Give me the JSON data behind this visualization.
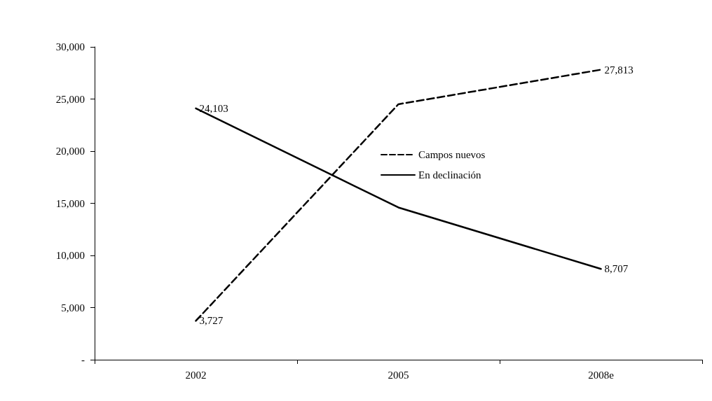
{
  "chart_data": {
    "type": "line",
    "categories": [
      "2002",
      "2005",
      "2008e"
    ],
    "series": [
      {
        "name": "Campos nuevos",
        "color": "#000000",
        "line_style": "dashed",
        "values": [
          3727,
          24500,
          27813
        ],
        "value_labels": [
          "3,727",
          null,
          "27,813"
        ]
      },
      {
        "name": "En declinación",
        "color": "#000000",
        "line_style": "solid",
        "values": [
          24103,
          14600,
          8707
        ],
        "value_labels": [
          "24,103",
          null,
          "8,707"
        ]
      }
    ],
    "ylim": [
      0,
      30000
    ],
    "yticks": [
      {
        "value": 0,
        "label": "-"
      },
      {
        "value": 5000,
        "label": "5,000"
      },
      {
        "value": 10000,
        "label": "10,000"
      },
      {
        "value": 15000,
        "label": "15,000"
      },
      {
        "value": 20000,
        "label": "20,000"
      },
      {
        "value": 25000,
        "label": "25,000"
      },
      {
        "value": 30000,
        "label": "30,000"
      }
    ],
    "grid": false,
    "legend": "center",
    "marker": "none"
  }
}
